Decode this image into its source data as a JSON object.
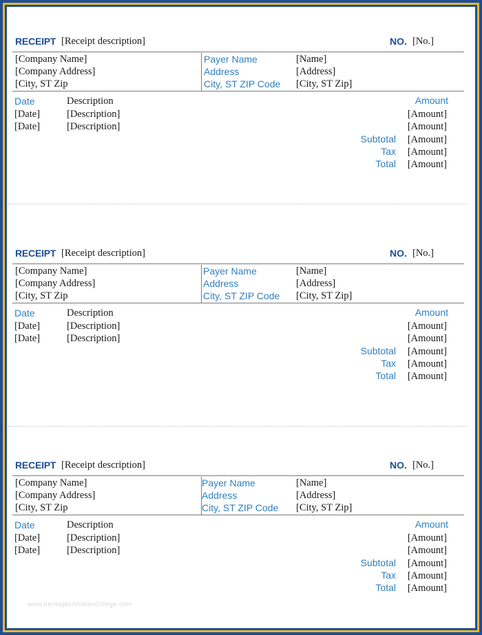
{
  "receipts": [
    {
      "title": "RECEIPT",
      "description": "[Receipt description]",
      "no_label": "NO.",
      "no_value": "[No.]",
      "company": [
        "[Company Name]",
        "[Company Address]",
        "[City, ST  Zip"
      ],
      "payer_labels": [
        "Payer Name",
        "Address",
        "City, ST ZIP Code"
      ],
      "payer_values": [
        "[Name]",
        "[Address]",
        "[City, ST  Zip]"
      ],
      "col_date": "Date",
      "col_description": "Description",
      "col_amount": "Amount",
      "rows": [
        {
          "date": "[Date]",
          "description": "[Description]",
          "amount": "[Amount]"
        },
        {
          "date": "[Date]",
          "description": "[Description]",
          "amount": "[Amount]"
        }
      ],
      "subtotal_label": "Subtotal",
      "subtotal_value": "[Amount]",
      "tax_label": "Tax",
      "tax_value": "[Amount]",
      "total_label": "Total",
      "total_value": "[Amount]"
    },
    {
      "title": "RECEIPT",
      "description": "[Receipt description]",
      "no_label": "NO.",
      "no_value": "[No.]",
      "company": [
        "[Company Name]",
        "[Company Address]",
        "[City, ST  Zip"
      ],
      "payer_labels": [
        "Payer Name",
        "Address",
        "City, ST ZIP Code"
      ],
      "payer_values": [
        "[Name]",
        "[Address]",
        "[City, ST  Zip]"
      ],
      "col_date": "Date",
      "col_description": "Description",
      "col_amount": "Amount",
      "rows": [
        {
          "date": "[Date]",
          "description": "[Description]",
          "amount": "[Amount]"
        },
        {
          "date": "[Date]",
          "description": "[Description]",
          "amount": "[Amount]"
        }
      ],
      "subtotal_label": "Subtotal",
      "subtotal_value": "[Amount]",
      "tax_label": "Tax",
      "tax_value": "[Amount]",
      "total_label": "Total",
      "total_value": "[Amount]"
    },
    {
      "title": "RECEIPT",
      "description": "[Receipt description]",
      "no_label": "NO.",
      "no_value": "[No.]",
      "company": [
        "[Company Name]",
        "[Company Address]",
        "[City, ST  Zip"
      ],
      "payer_labels": [
        "Payer Name",
        "Address",
        "City, ST ZIP Code"
      ],
      "payer_values": [
        "[Name]",
        "[Address]",
        "[City, ST  Zip]"
      ],
      "col_date": "Date",
      "col_description": "Description",
      "col_amount": "Amount",
      "rows": [
        {
          "date": "[Date]",
          "description": "[Description]",
          "amount": "[Amount]"
        },
        {
          "date": "[Date]",
          "description": "[Description]",
          "amount": "[Amount]"
        }
      ],
      "subtotal_label": "Subtotal",
      "subtotal_value": "[Amount]",
      "tax_label": "Tax",
      "tax_value": "[Amount]",
      "total_label": "Total",
      "total_value": "[Amount]"
    }
  ],
  "watermark": "www.heritagechristiancollege.com",
  "colors": {
    "frame_blue": "#1f4e96",
    "frame_gold": "#e7b829",
    "title_blue": "#1f4e96",
    "label_blue": "#2f7fbf"
  }
}
